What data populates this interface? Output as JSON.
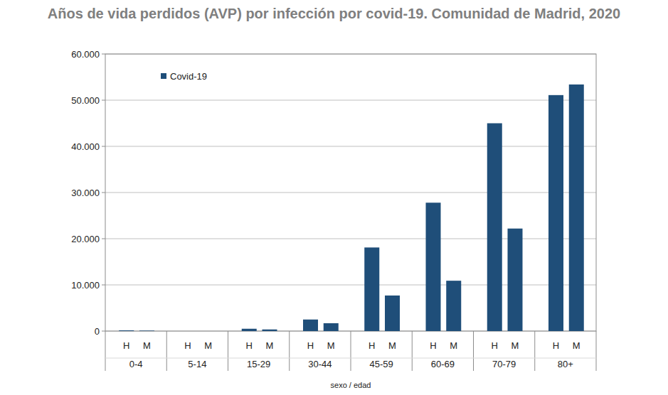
{
  "chart_data": {
    "type": "bar",
    "title": "Años de vida perdidos (AVP) por infección por covid-19. Comunidad de Madrid, 2020",
    "x_label": "sexo / edad",
    "categories": [
      "H",
      "M",
      "H",
      "M",
      "H",
      "M",
      "H",
      "M",
      "H",
      "M",
      "H",
      "M",
      "H",
      "M",
      "H",
      "M"
    ],
    "groups": [
      "0-4",
      "5-14",
      "15-29",
      "30-44",
      "45-59",
      "60-69",
      "70-79",
      "80+"
    ],
    "series": [
      {
        "name": "Covid-19",
        "color": "#1f4e79",
        "values": [
          150,
          100,
          0,
          0,
          500,
          350,
          2500,
          1700,
          18100,
          7700,
          27800,
          10900,
          45000,
          22200,
          51100,
          53400
        ]
      }
    ],
    "ylim": [
      0,
      60000
    ],
    "yticks": [
      0,
      {
        "value": 10000,
        "label": "10.000"
      },
      {
        "value": 20000,
        "label": "20.000"
      },
      {
        "value": 30000,
        "label": "30.000"
      },
      {
        "value": 40000,
        "label": "40.000"
      },
      {
        "value": 50000,
        "label": "50.000"
      },
      {
        "value": 60000,
        "label": "60.000"
      }
    ],
    "grid": true,
    "legend": "top-left"
  }
}
